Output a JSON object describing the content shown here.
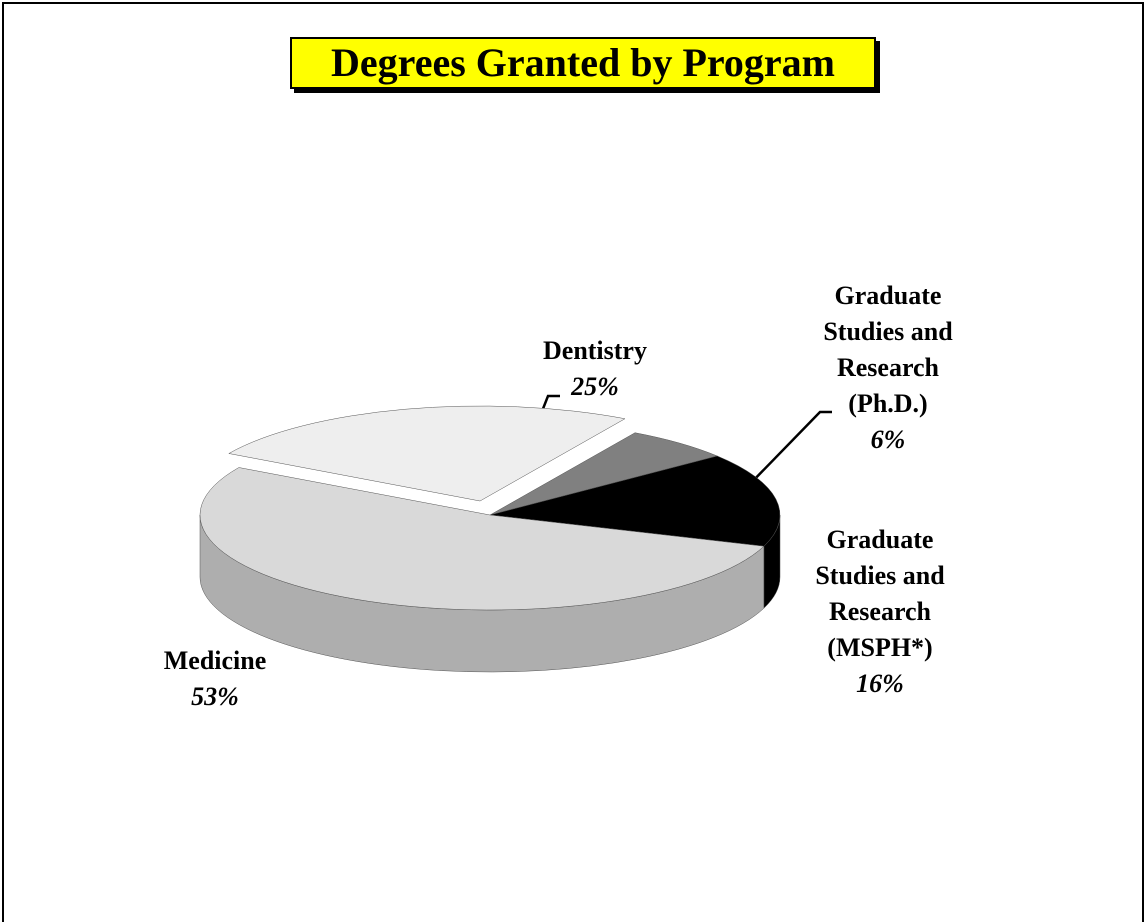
{
  "chart_data": {
    "type": "pie3d",
    "title": "Degrees Granted by Program",
    "categories": [
      "Dentistry",
      "Graduate Studies and Research (Ph.D.)",
      "Graduate Studies and Research (MSPH*)",
      "Medicine"
    ],
    "values": [
      25,
      6,
      16,
      53
    ],
    "value_labels": [
      "25%",
      "6%",
      "16%",
      "53%"
    ],
    "colors": [
      "#eeeeee",
      "#808080",
      "#000000",
      "#d9d9d9"
    ]
  }
}
